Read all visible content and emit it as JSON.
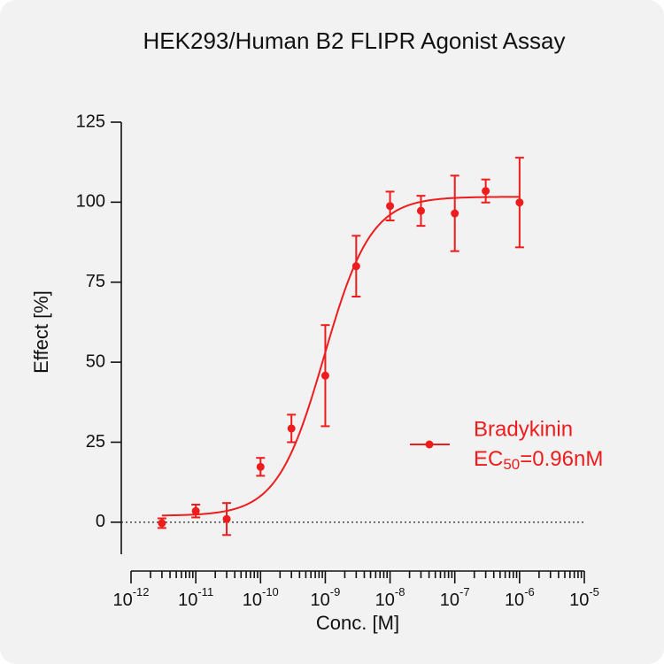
{
  "chart_data": {
    "type": "scatter",
    "title": "HEK293/Human B2 FLIPR Agonist Assay",
    "xlabel": "Conc. [M]",
    "ylabel": "Effect  [%]",
    "x": [
      3e-12,
      1e-11,
      3e-11,
      1e-10,
      3e-10,
      1e-09,
      3e-09,
      1e-08,
      3e-08,
      1e-07,
      3e-07,
      1e-06
    ],
    "series": [
      {
        "name": "Bradykinin",
        "color": "#ee1c1c",
        "values": [
          -0.3,
          3.5,
          1.0,
          17.3,
          29.3,
          45.8,
          80.0,
          98.8,
          97.3,
          96.5,
          103.5,
          99.9
        ],
        "errors": [
          1.5,
          2.0,
          5.0,
          2.8,
          4.3,
          15.8,
          9.5,
          4.5,
          4.7,
          11.8,
          3.6,
          14.0
        ]
      }
    ],
    "fit": {
      "bottom": 2,
      "top": 101.7,
      "ec50": 9.6e-10,
      "hill": 1.2
    },
    "annotation": {
      "prefix": "EC",
      "subscript": "50",
      "suffix": "=0.96nM"
    },
    "xscale": "log",
    "xlim": [
      1e-12,
      1e-05
    ],
    "xticks": [
      {
        "value": 1e-12,
        "label": "10",
        "exponent": "-12"
      },
      {
        "value": 1e-11,
        "label": "10",
        "exponent": "-11"
      },
      {
        "value": 1e-10,
        "label": "10",
        "exponent": "-10"
      },
      {
        "value": 1e-09,
        "label": "10",
        "exponent": "-9"
      },
      {
        "value": 1e-08,
        "label": "10",
        "exponent": "-8"
      },
      {
        "value": 1e-07,
        "label": "10",
        "exponent": "-7"
      },
      {
        "value": 1e-06,
        "label": "10",
        "exponent": "-6"
      },
      {
        "value": 1e-05,
        "label": "10",
        "exponent": "-5"
      }
    ],
    "minor_ticks": true,
    "ylim": [
      -10,
      125
    ],
    "yticks": [
      0,
      25,
      50,
      75,
      100,
      125
    ],
    "zero_line": true,
    "legend": "right"
  }
}
